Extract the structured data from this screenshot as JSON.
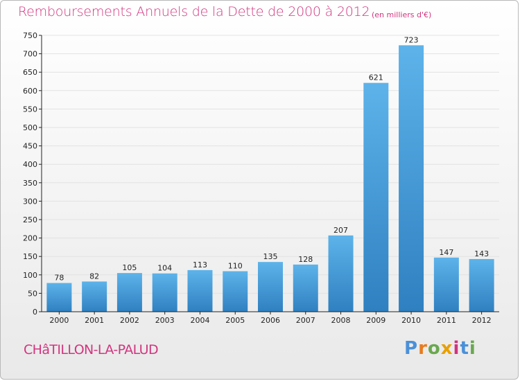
{
  "header": {
    "title": "Remboursements Annuels de la Dette de 2000 à 2012",
    "subtitle": "(en milliers d'€)"
  },
  "footer": {
    "commune": "CHâTILLON-LA-PALUD",
    "logo": "Proxiti"
  },
  "colors": {
    "title": "#d2357f",
    "bar_light": "#5db3ea",
    "bar_dark": "#2f80c0",
    "grid": "#e2e2e2",
    "axis": "#222222",
    "logo_letters": [
      "#4a90d9",
      "#e87c1e",
      "#6aa84f",
      "#e8a000",
      "#d0347f",
      "#4a90d9",
      "#6aa84f"
    ]
  },
  "chart_data": {
    "type": "bar",
    "categories": [
      "2000",
      "2001",
      "2002",
      "2003",
      "2004",
      "2005",
      "2006",
      "2007",
      "2008",
      "2009",
      "2010",
      "2011",
      "2012"
    ],
    "values": [
      78,
      82,
      105,
      104,
      113,
      110,
      135,
      128,
      207,
      621,
      723,
      147,
      143
    ],
    "ylim": [
      0,
      750
    ],
    "yticks": [
      0,
      50,
      100,
      150,
      200,
      250,
      300,
      350,
      400,
      450,
      500,
      550,
      600,
      650,
      700,
      750
    ],
    "grid": true,
    "data_labels": true
  }
}
